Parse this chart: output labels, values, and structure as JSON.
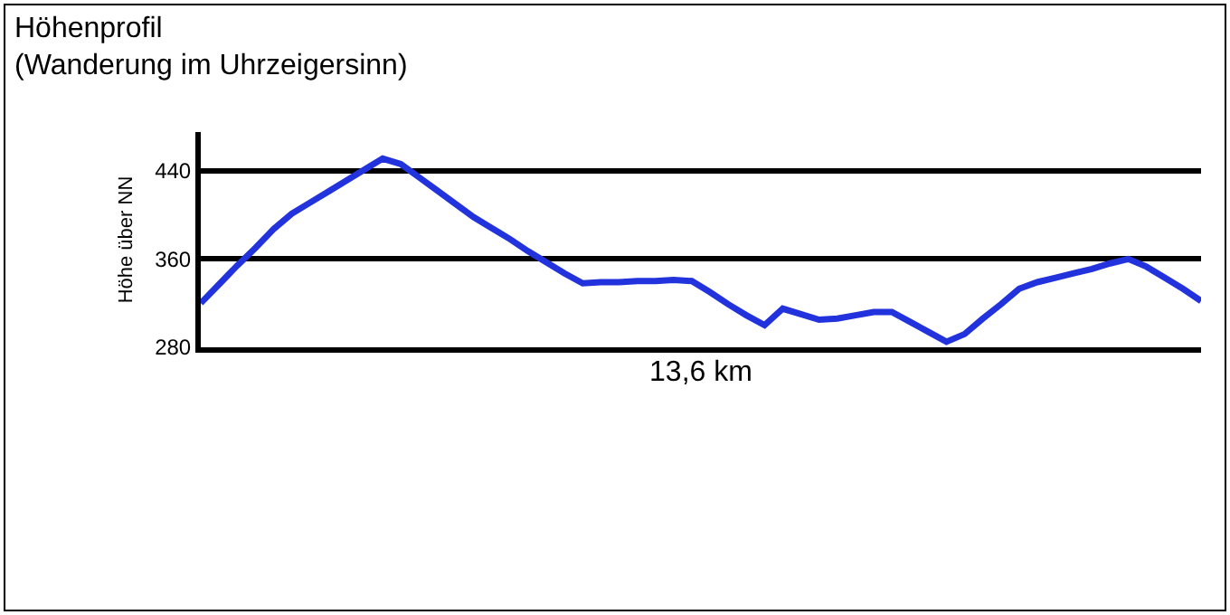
{
  "chart_data": {
    "type": "line",
    "title": "Höhenprofil\n(Wanderung im Uhrzeigersinn)",
    "xlabel": "13,6 km",
    "ylabel": "Höhe über NN",
    "categories": [
      null,
      null,
      null,
      null,
      null,
      null,
      null,
      null,
      null,
      null,
      null,
      null,
      null,
      null,
      null,
      null,
      null,
      null,
      null,
      null,
      null,
      null,
      null,
      null,
      null,
      null,
      null,
      null,
      null,
      null,
      null,
      null,
      null,
      null,
      null,
      null,
      null,
      null,
      null,
      null,
      null,
      null,
      null,
      null,
      null,
      null,
      null,
      null,
      null,
      null,
      null,
      null,
      null,
      null,
      null,
      null
    ],
    "series": [
      {
        "color": "#2233dd",
        "values": [
          320,
          337,
          354,
          370,
          387,
          401,
          411,
          421,
          431,
          441,
          451,
          446,
          434,
          422,
          410,
          398,
          388,
          378,
          367,
          357,
          347,
          338,
          339,
          339,
          340,
          340,
          341,
          340,
          330,
          319,
          309,
          300,
          315,
          310,
          305,
          306,
          309,
          312,
          312,
          303,
          294,
          285,
          292,
          306,
          319,
          333,
          339,
          343,
          347,
          351,
          356,
          360,
          353,
          343,
          333,
          322
        ]
      }
    ],
    "ylim": [
      280,
      475
    ],
    "yticks": [
      280,
      360,
      440
    ],
    "grid": "y",
    "marker": "none",
    "line_style": "solid",
    "tick_labels": "y"
  }
}
